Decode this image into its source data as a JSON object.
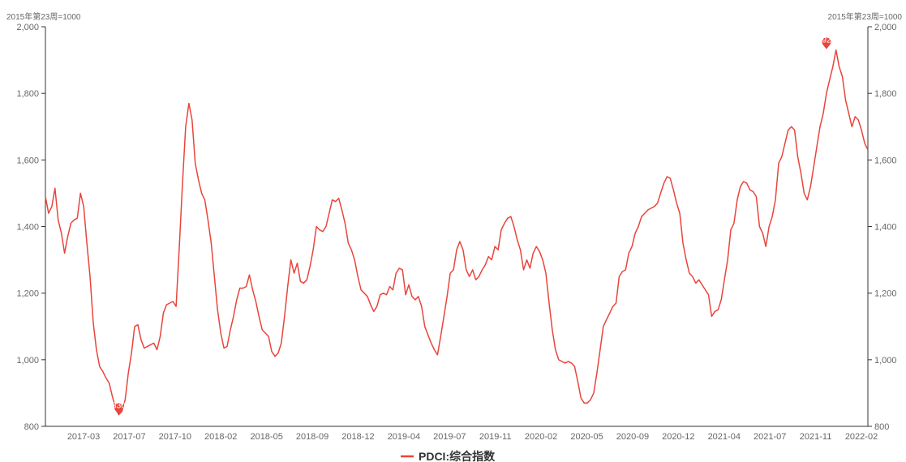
{
  "chart_data": {
    "type": "line",
    "y_unit_left": "2015年第23周=1000",
    "y_unit_right": "2015年第23周=1000",
    "ylim": [
      800,
      2000
    ],
    "y_ticks": [
      800,
      1000,
      1200,
      1400,
      1600,
      1800,
      2000
    ],
    "y_tick_labels": [
      "800",
      "1,000",
      "1,200",
      "1,400",
      "1,600",
      "1,800",
      "2,000"
    ],
    "x_tick_labels": [
      "2017-03",
      "2017-07",
      "2017-10",
      "2018-02",
      "2018-05",
      "2018-09",
      "2018-12",
      "2019-04",
      "2019-07",
      "2019-11",
      "2020-02",
      "2020-05",
      "2020-09",
      "2020-12",
      "2021-04",
      "2021-07",
      "2021-11",
      "2022-02"
    ],
    "grid": false,
    "legend_position": "bottom-center",
    "series": [
      {
        "name": "PDCI:综合指数",
        "color": "#e8453c",
        "x_range": [
          "2016-12",
          "2022-02"
        ],
        "values": [
          1490,
          1440,
          1460,
          1515,
          1420,
          1380,
          1320,
          1370,
          1410,
          1420,
          1425,
          1500,
          1460,
          1350,
          1250,
          1110,
          1030,
          980,
          965,
          945,
          930,
          890,
          855,
          835,
          845,
          880,
          960,
          1020,
          1100,
          1105,
          1060,
          1035,
          1040,
          1045,
          1050,
          1030,
          1070,
          1140,
          1165,
          1170,
          1175,
          1160,
          1340,
          1530,
          1700,
          1770,
          1720,
          1590,
          1540,
          1500,
          1480,
          1420,
          1350,
          1250,
          1150,
          1080,
          1035,
          1040,
          1090,
          1130,
          1180,
          1215,
          1215,
          1220,
          1255,
          1210,
          1175,
          1130,
          1090,
          1080,
          1070,
          1025,
          1010,
          1020,
          1050,
          1130,
          1220,
          1300,
          1260,
          1290,
          1235,
          1230,
          1240,
          1280,
          1330,
          1400,
          1390,
          1385,
          1400,
          1440,
          1480,
          1475,
          1485,
          1450,
          1410,
          1350,
          1330,
          1300,
          1250,
          1210,
          1200,
          1190,
          1165,
          1145,
          1160,
          1195,
          1200,
          1195,
          1220,
          1210,
          1260,
          1275,
          1270,
          1195,
          1225,
          1190,
          1180,
          1190,
          1160,
          1100,
          1075,
          1050,
          1030,
          1015,
          1070,
          1130,
          1190,
          1260,
          1270,
          1330,
          1355,
          1330,
          1270,
          1250,
          1270,
          1240,
          1250,
          1270,
          1285,
          1310,
          1300,
          1340,
          1330,
          1390,
          1410,
          1425,
          1430,
          1400,
          1360,
          1330,
          1270,
          1300,
          1275,
          1320,
          1340,
          1325,
          1300,
          1260,
          1170,
          1090,
          1030,
          1000,
          995,
          990,
          995,
          990,
          980,
          935,
          885,
          870,
          870,
          880,
          900,
          960,
          1030,
          1100,
          1120,
          1140,
          1160,
          1170,
          1250,
          1265,
          1270,
          1320,
          1340,
          1380,
          1400,
          1430,
          1440,
          1450,
          1455,
          1460,
          1470,
          1500,
          1530,
          1550,
          1545,
          1510,
          1470,
          1440,
          1350,
          1300,
          1260,
          1250,
          1230,
          1240,
          1225,
          1210,
          1195,
          1130,
          1145,
          1150,
          1180,
          1240,
          1300,
          1390,
          1410,
          1480,
          1520,
          1535,
          1530,
          1510,
          1505,
          1490,
          1400,
          1380,
          1340,
          1400,
          1430,
          1480,
          1590,
          1610,
          1650,
          1690,
          1700,
          1690,
          1610,
          1560,
          1500,
          1480,
          1520,
          1580,
          1640,
          1700,
          1740,
          1800,
          1840,
          1880,
          1930,
          1880,
          1850,
          1780,
          1740,
          1700,
          1730,
          1720,
          1690,
          1650,
          1630
        ]
      }
    ],
    "markers": [
      {
        "type": "min",
        "label": "830",
        "value": 830,
        "index": 23
      },
      {
        "type": "max",
        "label": "1928",
        "value": 1928,
        "index": 245
      }
    ]
  }
}
